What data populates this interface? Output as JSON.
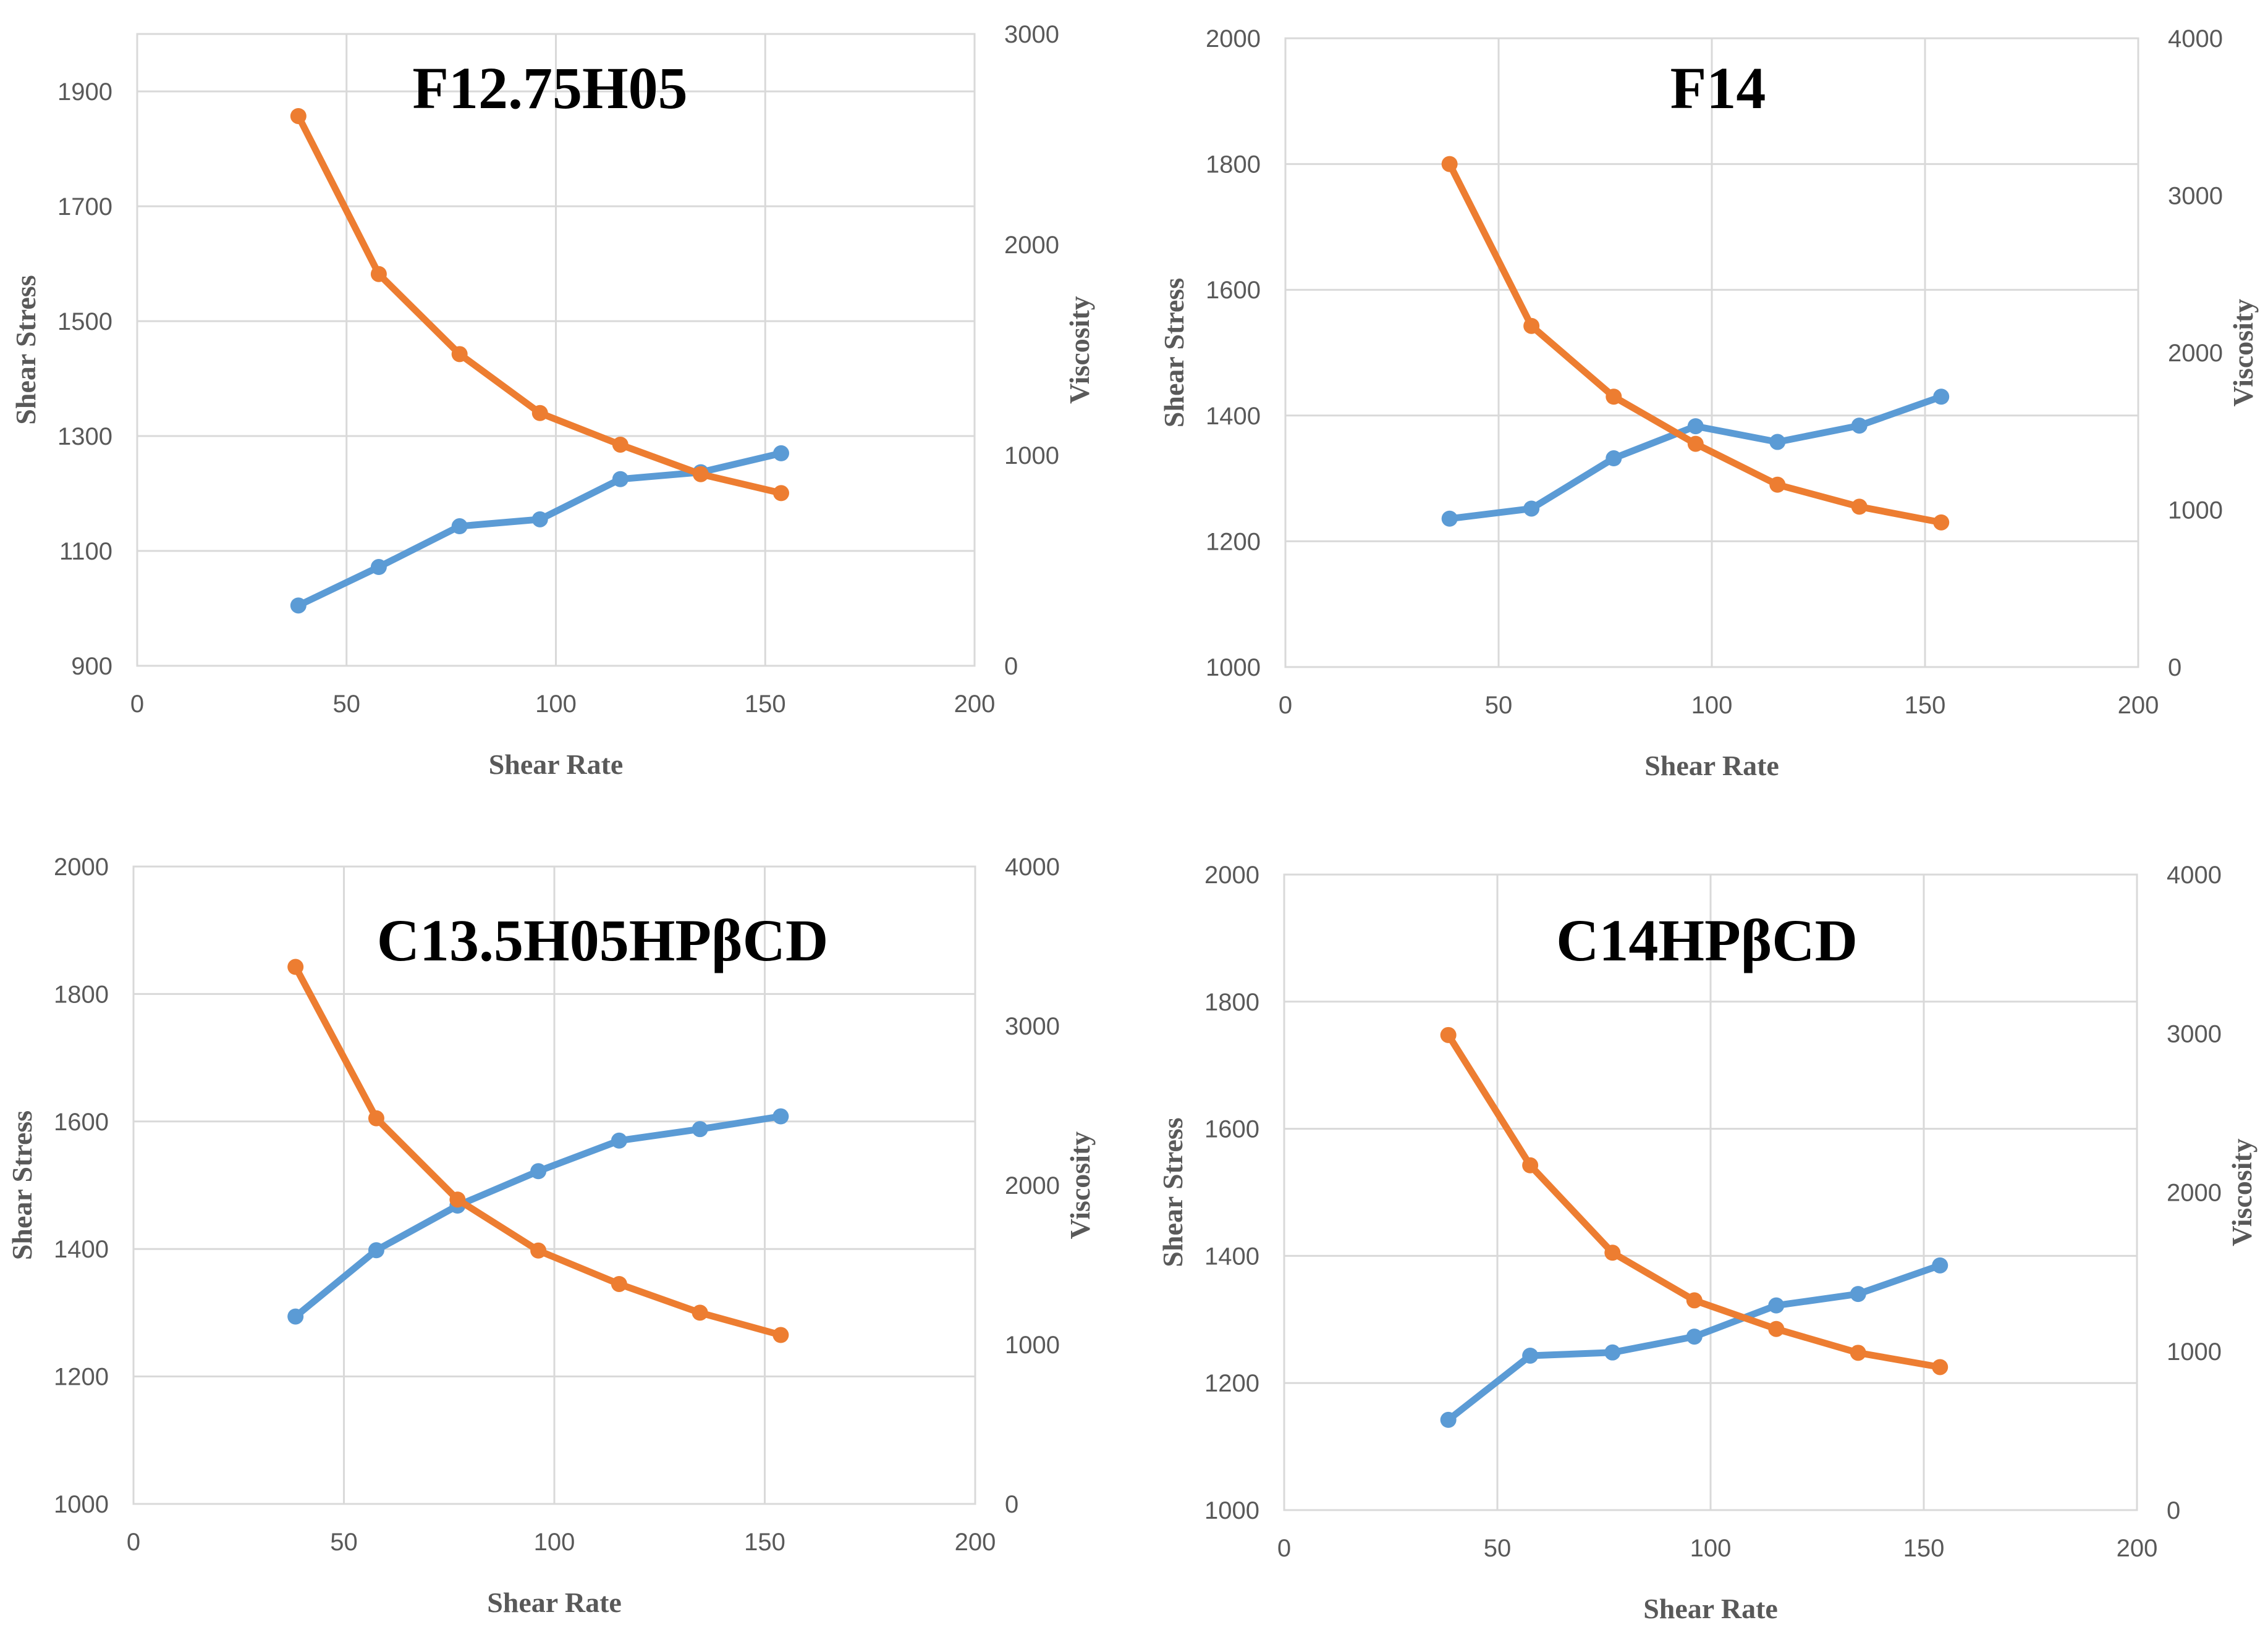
{
  "chart_data": [
    {
      "type": "line",
      "title": "F12.75H05",
      "xlabel": "Shear Rate",
      "ylabel": "Shear Stress",
      "y2label": "Viscosity",
      "xlim": [
        0,
        200
      ],
      "ylim": [
        900,
        2000
      ],
      "y2lim": [
        0,
        3000
      ],
      "xticks": [
        0,
        50,
        100,
        150,
        200
      ],
      "yticks": [
        900,
        1100,
        1300,
        1500,
        1700,
        1900
      ],
      "y2ticks": [
        0,
        1000,
        2000,
        3000
      ],
      "x": [
        38.5,
        57.7,
        77,
        96.2,
        115.4,
        134.6,
        153.8
      ],
      "series": [
        {
          "name": "Shear Stress",
          "axis": "left",
          "color": "#5b9bd5",
          "values": [
            1005,
            1072,
            1143,
            1155,
            1225,
            1237,
            1270
          ]
        },
        {
          "name": "Viscosity",
          "axis": "right",
          "color": "#ed7d31",
          "values": [
            2610,
            1860,
            1480,
            1200,
            1050,
            910,
            820
          ]
        }
      ]
    },
    {
      "type": "line",
      "title": "F14",
      "xlabel": "Shear Rate",
      "ylabel": "Shear Stress",
      "y2label": "Viscosity",
      "xlim": [
        0,
        200
      ],
      "ylim": [
        1000,
        2000
      ],
      "y2lim": [
        0,
        4000
      ],
      "xticks": [
        0,
        50,
        100,
        150,
        200
      ],
      "yticks": [
        1000,
        1200,
        1400,
        1600,
        1800,
        2000
      ],
      "y2ticks": [
        0,
        1000,
        2000,
        3000,
        4000
      ],
      "x": [
        38.5,
        57.7,
        77,
        96.2,
        115.4,
        134.6,
        153.8
      ],
      "series": [
        {
          "name": "Shear Stress",
          "axis": "left",
          "color": "#5b9bd5",
          "values": [
            1236,
            1252,
            1332,
            1383,
            1358,
            1384,
            1430
          ]
        },
        {
          "name": "Viscosity",
          "axis": "right",
          "color": "#ed7d31",
          "values": [
            3200,
            2170,
            1720,
            1420,
            1160,
            1020,
            920
          ]
        }
      ]
    },
    {
      "type": "line",
      "title": "C13.5H05HPβCD",
      "xlabel": "Shear Rate",
      "ylabel": "Shear Stress",
      "y2label": "Viscosity",
      "xlim": [
        0,
        200
      ],
      "ylim": [
        1000,
        2000
      ],
      "y2lim": [
        0,
        4000
      ],
      "xticks": [
        0,
        50,
        100,
        150,
        200
      ],
      "yticks": [
        1000,
        1200,
        1400,
        1600,
        1800,
        2000
      ],
      "y2ticks": [
        0,
        1000,
        2000,
        3000,
        4000
      ],
      "x": [
        38.5,
        57.7,
        77,
        96.2,
        115.4,
        134.6,
        153.8
      ],
      "series": [
        {
          "name": "Shear Stress",
          "axis": "left",
          "color": "#5b9bd5",
          "values": [
            1294,
            1398,
            1468,
            1522,
            1570,
            1588,
            1608
          ]
        },
        {
          "name": "Viscosity",
          "axis": "right",
          "color": "#ed7d31",
          "values": [
            3370,
            2420,
            1910,
            1590,
            1380,
            1200,
            1060
          ]
        }
      ]
    },
    {
      "type": "line",
      "title": "C14HPβCD",
      "xlabel": "Shear Rate",
      "ylabel": "Shear Stress",
      "y2label": "Viscosity",
      "xlim": [
        0,
        200
      ],
      "ylim": [
        1000,
        2000
      ],
      "y2lim": [
        0,
        4000
      ],
      "xticks": [
        0,
        50,
        100,
        150,
        200
      ],
      "yticks": [
        1000,
        1200,
        1400,
        1600,
        1800,
        2000
      ],
      "y2ticks": [
        0,
        1000,
        2000,
        3000,
        4000
      ],
      "x": [
        38.5,
        57.7,
        77,
        96.2,
        115.4,
        134.6,
        153.8
      ],
      "series": [
        {
          "name": "Shear Stress",
          "axis": "left",
          "color": "#5b9bd5",
          "values": [
            1142,
            1243,
            1248,
            1273,
            1322,
            1340,
            1385
          ]
        },
        {
          "name": "Viscosity",
          "axis": "right",
          "color": "#ed7d31",
          "values": [
            2990,
            2170,
            1620,
            1320,
            1140,
            990,
            900
          ]
        }
      ]
    }
  ]
}
